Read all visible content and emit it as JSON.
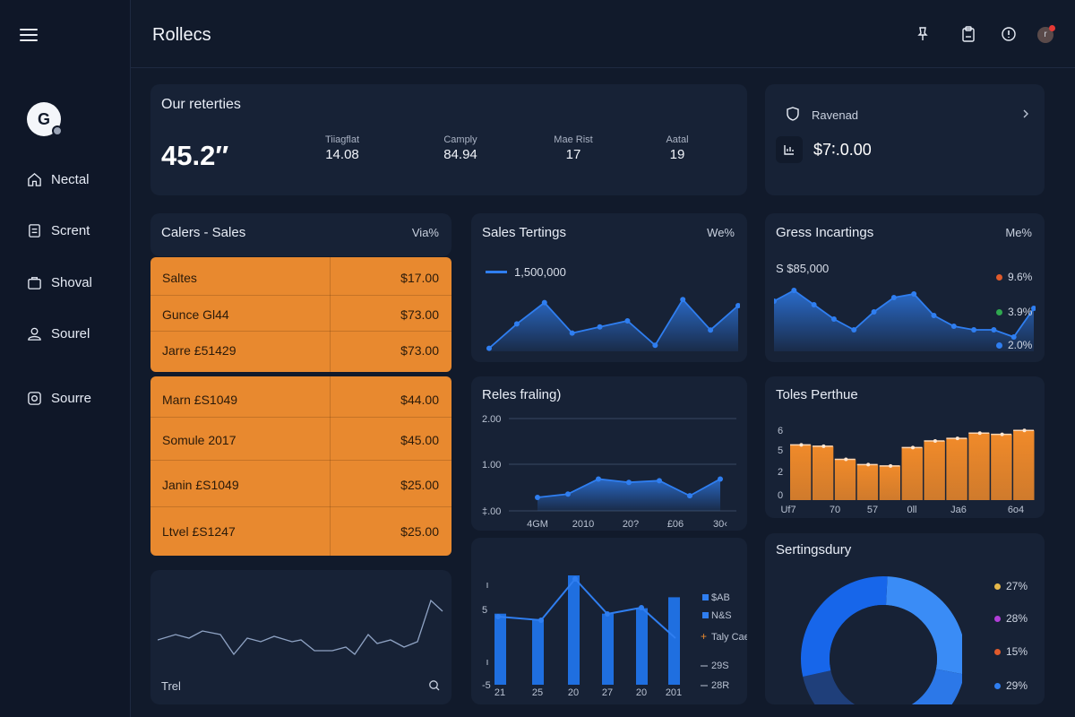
{
  "app": {
    "title": "Rollecs"
  },
  "sidebar": {
    "logo_letter": "G",
    "items": [
      {
        "label": "Nectal",
        "icon": "home-icon"
      },
      {
        "label": "Scrent",
        "icon": "document-icon"
      },
      {
        "label": "Shoval",
        "icon": "briefcase-icon"
      },
      {
        "label": "Sourel",
        "icon": "user-icon"
      },
      {
        "label": "Sourre",
        "icon": "settings-icon"
      }
    ]
  },
  "topbar": {
    "icons": [
      "pin-icon",
      "clipboard-icon",
      "alert-icon"
    ],
    "avatar_letter": "r"
  },
  "overview": {
    "title": "Our reterties",
    "big_value": "45.2′′",
    "stats": [
      {
        "label": "Tiiagflat",
        "value": "14.08"
      },
      {
        "label": "Camply",
        "value": "84.94"
      },
      {
        "label": "Mae Rist",
        "value": "17"
      },
      {
        "label": "Aatal",
        "value": "19"
      }
    ]
  },
  "revenue": {
    "label": "Ravenad",
    "value": "$7∶.0.00"
  },
  "sales_table": {
    "title": "Calers - Sales",
    "right_label": "Via%",
    "group1": [
      {
        "name": "Saltes",
        "value": "$17.00"
      },
      {
        "name": "Gunce Gl44",
        "value": "$73.00"
      },
      {
        "name": "Jarre £51429",
        "value": "$73.00"
      }
    ],
    "group2": [
      {
        "name": "Marn £S1049",
        "value": "$44.00"
      },
      {
        "name": "Somule 2017",
        "value": "$45.00"
      },
      {
        "name": "Janin £S1049",
        "value": "$25.00"
      },
      {
        "name": "Ltvel £S1247",
        "value": "$25.00"
      }
    ]
  },
  "trend_card": {
    "label": "Trel"
  },
  "sales_tertings": {
    "title": "Sales Tertings",
    "right_label": "We%",
    "legend": "1,500,000",
    "chart_data": {
      "type": "area",
      "values": [
        0.05,
        0.45,
        0.8,
        0.3,
        0.4,
        0.5,
        0.1,
        0.85,
        0.35,
        0.75
      ]
    }
  },
  "gross": {
    "title": "Gress Incartings",
    "right_label": "Me%",
    "value_label": "S $85,000",
    "legend": [
      {
        "label": "9.6%",
        "color": "#e05a2b"
      },
      {
        "label": "3.9%",
        "color": "#2fa84f"
      },
      {
        "label": "2.0%",
        "color": "#2f7ef0"
      }
    ],
    "chart_data": {
      "type": "area",
      "values": [
        0.7,
        0.85,
        0.65,
        0.45,
        0.3,
        0.55,
        0.75,
        0.8,
        0.5,
        0.35,
        0.3,
        0.3,
        0.2,
        0.6
      ]
    }
  },
  "rates": {
    "title": "Reles fraling)",
    "y_ticks": [
      "2.00",
      "1.00",
      "‡.00"
    ],
    "x_ticks": [
      "4GM",
      "2010",
      "20?",
      "£06",
      "30‹"
    ],
    "chart_data": {
      "type": "area",
      "values": [
        0.4,
        0.5,
        0.95,
        0.85,
        0.9,
        0.45,
        0.95
      ]
    }
  },
  "tolls": {
    "title": "Toles Perthue",
    "y_ticks": [
      "6",
      "5",
      "2",
      "0"
    ],
    "x_ticks": [
      "Uf7",
      "70",
      "57",
      "0ll",
      "Ja6",
      "6o4"
    ],
    "chart_data": {
      "type": "area",
      "values": [
        4.2,
        4.1,
        3.1,
        2.7,
        2.6,
        4.0,
        4.5,
        4.7,
        5.1,
        5.0,
        5.3
      ]
    }
  },
  "bars_card": {
    "y_ticks": [
      "5",
      "-5"
    ],
    "x_ticks": [
      "21",
      "25",
      "20",
      "27",
      "20",
      "201"
    ],
    "legend": [
      {
        "label": "$AB",
        "color": "#2f7ef0"
      },
      {
        "label": "N&S",
        "color": "#2f7ef0"
      },
      {
        "label": "Taly Caelk",
        "color": "#e8892f"
      },
      {
        "label": "29S",
        "color": "#b9c2d2"
      },
      {
        "label": "28R",
        "color": "#b9c2d2"
      }
    ],
    "chart_data": {
      "type": "bar",
      "values": [
        0.65,
        0.6,
        1.0,
        0.65,
        0.7,
        0.8
      ]
    }
  },
  "donut": {
    "title": "Sertingsdury",
    "legend": [
      {
        "label": "27%",
        "color": "#e6b84a"
      },
      {
        "label": "28%",
        "color": "#b13ed8"
      },
      {
        "label": "15%",
        "color": "#e05a2b"
      },
      {
        "label": "29%",
        "color": "#2f7ef0"
      }
    ],
    "chart_data": {
      "type": "pie",
      "values": [
        27,
        28,
        15,
        29
      ]
    }
  }
}
